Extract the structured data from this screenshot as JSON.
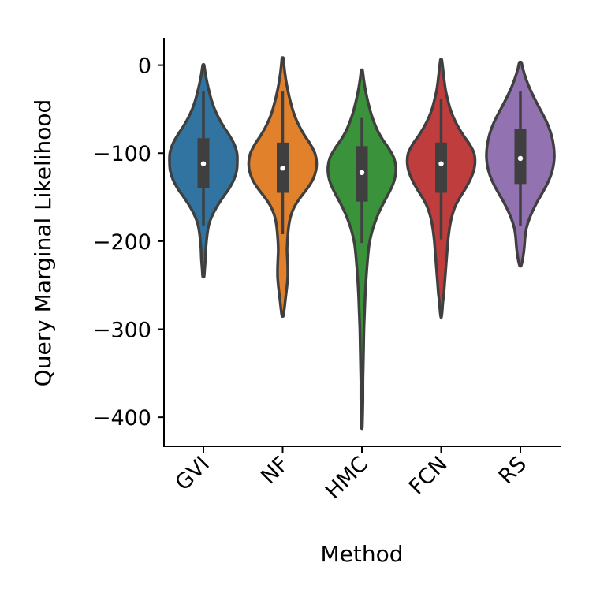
{
  "chart_data": {
    "type": "violin",
    "title": "",
    "xlabel": "Method",
    "ylabel": "Query Marginal Likelihood",
    "ylim": [
      -433,
      31
    ],
    "yticks": [
      0,
      -100,
      -200,
      -300,
      -400
    ],
    "ytick_labels": [
      "0",
      "−100",
      "−200",
      "−300",
      "−400"
    ],
    "grid": false,
    "legend": "none",
    "categories": [
      "GVI",
      "NF",
      "HMC",
      "FCN",
      "RS"
    ],
    "series": [
      {
        "category": "GVI",
        "color": "#3274a1",
        "min": -240,
        "max": 0,
        "whisker_low": -182,
        "q1": -140,
        "median": -112,
        "q3": -83,
        "whisker_high": -30,
        "density": [
          [
            0,
            0.02
          ],
          [
            -10,
            0.06
          ],
          [
            -20,
            0.11
          ],
          [
            -30,
            0.17
          ],
          [
            -40,
            0.24
          ],
          [
            -50,
            0.33
          ],
          [
            -60,
            0.45
          ],
          [
            -70,
            0.6
          ],
          [
            -80,
            0.77
          ],
          [
            -90,
            0.91
          ],
          [
            -100,
            0.99
          ],
          [
            -110,
            1.0
          ],
          [
            -120,
            0.98
          ],
          [
            -130,
            0.9
          ],
          [
            -140,
            0.76
          ],
          [
            -150,
            0.58
          ],
          [
            -160,
            0.41
          ],
          [
            -170,
            0.27
          ],
          [
            -180,
            0.17
          ],
          [
            -190,
            0.12
          ],
          [
            -200,
            0.09
          ],
          [
            -210,
            0.07
          ],
          [
            -220,
            0.06
          ],
          [
            -230,
            0.04
          ],
          [
            -240,
            0.02
          ]
        ]
      },
      {
        "category": "NF",
        "color": "#e1812c",
        "min": -285,
        "max": 8,
        "whisker_low": -192,
        "q1": -145,
        "median": -117,
        "q3": -88,
        "whisker_high": -30,
        "density": [
          [
            8,
            0.02
          ],
          [
            0,
            0.04
          ],
          [
            -10,
            0.07
          ],
          [
            -20,
            0.11
          ],
          [
            -30,
            0.16
          ],
          [
            -40,
            0.22
          ],
          [
            -50,
            0.29
          ],
          [
            -60,
            0.38
          ],
          [
            -70,
            0.5
          ],
          [
            -80,
            0.65
          ],
          [
            -90,
            0.82
          ],
          [
            -100,
            0.95
          ],
          [
            -110,
            1.0
          ],
          [
            -120,
            0.98
          ],
          [
            -130,
            0.89
          ],
          [
            -140,
            0.73
          ],
          [
            -150,
            0.53
          ],
          [
            -160,
            0.36
          ],
          [
            -170,
            0.25
          ],
          [
            -180,
            0.19
          ],
          [
            -190,
            0.16
          ],
          [
            -200,
            0.14
          ],
          [
            -210,
            0.13
          ],
          [
            -220,
            0.14
          ],
          [
            -230,
            0.15
          ],
          [
            -240,
            0.15
          ],
          [
            -250,
            0.13
          ],
          [
            -260,
            0.1
          ],
          [
            -270,
            0.07
          ],
          [
            -280,
            0.04
          ],
          [
            -285,
            0.02
          ]
        ]
      },
      {
        "category": "HMC",
        "color": "#3a923a",
        "min": -412,
        "max": -6,
        "whisker_low": -202,
        "q1": -155,
        "median": -122,
        "q3": -92,
        "whisker_high": -60,
        "density": [
          [
            -6,
            0.02
          ],
          [
            -15,
            0.05
          ],
          [
            -25,
            0.09
          ],
          [
            -35,
            0.14
          ],
          [
            -45,
            0.2
          ],
          [
            -55,
            0.27
          ],
          [
            -65,
            0.36
          ],
          [
            -75,
            0.47
          ],
          [
            -85,
            0.62
          ],
          [
            -95,
            0.8
          ],
          [
            -105,
            0.94
          ],
          [
            -115,
            1.0
          ],
          [
            -125,
            0.99
          ],
          [
            -135,
            0.92
          ],
          [
            -145,
            0.8
          ],
          [
            -155,
            0.66
          ],
          [
            -165,
            0.53
          ],
          [
            -175,
            0.42
          ],
          [
            -185,
            0.33
          ],
          [
            -195,
            0.26
          ],
          [
            -205,
            0.21
          ],
          [
            -220,
            0.17
          ],
          [
            -240,
            0.13
          ],
          [
            -260,
            0.1
          ],
          [
            -280,
            0.08
          ],
          [
            -300,
            0.06
          ],
          [
            -320,
            0.05
          ],
          [
            -340,
            0.04
          ],
          [
            -360,
            0.03
          ],
          [
            -380,
            0.03
          ],
          [
            -400,
            0.02
          ],
          [
            -412,
            0.01
          ]
        ]
      },
      {
        "category": "FCN",
        "color": "#c03d3e",
        "min": -286,
        "max": 6,
        "whisker_low": -198,
        "q1": -145,
        "median": -112,
        "q3": -88,
        "whisker_high": -38,
        "density": [
          [
            6,
            0.02
          ],
          [
            0,
            0.04
          ],
          [
            -10,
            0.07
          ],
          [
            -20,
            0.1
          ],
          [
            -30,
            0.14
          ],
          [
            -40,
            0.2
          ],
          [
            -50,
            0.27
          ],
          [
            -60,
            0.37
          ],
          [
            -70,
            0.5
          ],
          [
            -80,
            0.66
          ],
          [
            -90,
            0.84
          ],
          [
            -100,
            0.97
          ],
          [
            -110,
            1.0
          ],
          [
            -120,
            0.96
          ],
          [
            -130,
            0.86
          ],
          [
            -140,
            0.72
          ],
          [
            -150,
            0.56
          ],
          [
            -160,
            0.42
          ],
          [
            -170,
            0.33
          ],
          [
            -180,
            0.27
          ],
          [
            -190,
            0.23
          ],
          [
            -200,
            0.2
          ],
          [
            -210,
            0.18
          ],
          [
            -220,
            0.16
          ],
          [
            -230,
            0.14
          ],
          [
            -240,
            0.12
          ],
          [
            -250,
            0.1
          ],
          [
            -260,
            0.08
          ],
          [
            -270,
            0.05
          ],
          [
            -280,
            0.03
          ],
          [
            -286,
            0.01
          ]
        ]
      },
      {
        "category": "RS",
        "color": "#9372b2",
        "min": -228,
        "max": 3,
        "whisker_low": -183,
        "q1": -135,
        "median": -106,
        "q3": -72,
        "whisker_high": -30,
        "density": [
          [
            3,
            0.03
          ],
          [
            -5,
            0.08
          ],
          [
            -15,
            0.16
          ],
          [
            -25,
            0.26
          ],
          [
            -35,
            0.38
          ],
          [
            -45,
            0.51
          ],
          [
            -55,
            0.65
          ],
          [
            -65,
            0.78
          ],
          [
            -75,
            0.88
          ],
          [
            -85,
            0.95
          ],
          [
            -95,
            0.99
          ],
          [
            -105,
            1.0
          ],
          [
            -115,
            0.97
          ],
          [
            -125,
            0.9
          ],
          [
            -135,
            0.79
          ],
          [
            -145,
            0.65
          ],
          [
            -155,
            0.5
          ],
          [
            -165,
            0.37
          ],
          [
            -175,
            0.26
          ],
          [
            -185,
            0.18
          ],
          [
            -195,
            0.14
          ],
          [
            -205,
            0.12
          ],
          [
            -215,
            0.09
          ],
          [
            -222,
            0.06
          ],
          [
            -228,
            0.02
          ]
        ]
      }
    ]
  }
}
